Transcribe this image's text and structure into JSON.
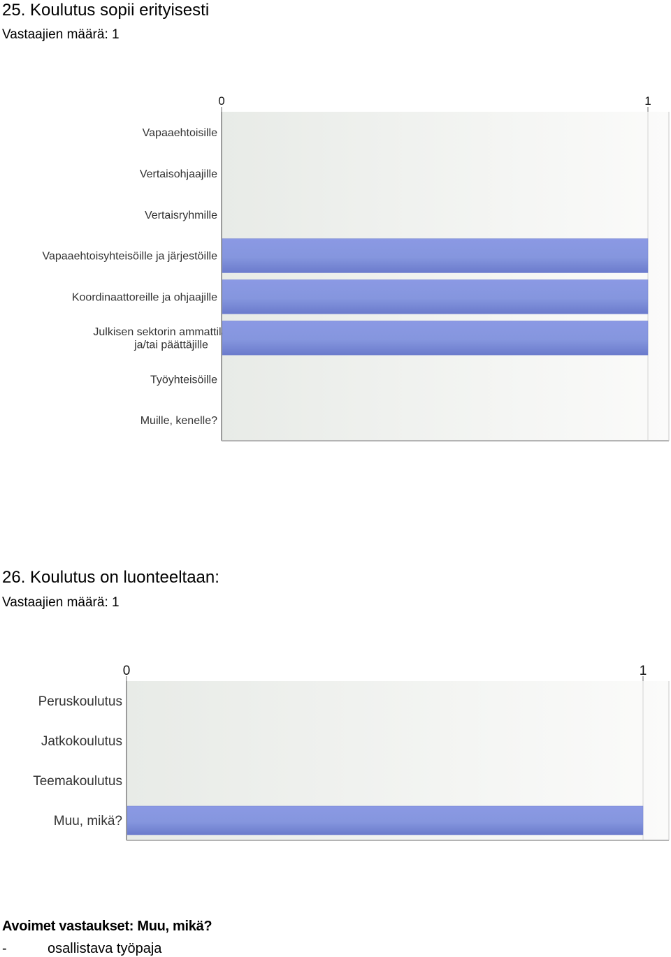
{
  "q25": {
    "title": "25. Koulutus sopii erityisesti",
    "respondents": "Vastaajien määrä: 1",
    "chart_data": {
      "type": "bar",
      "orientation": "horizontal",
      "ticks": [
        "0",
        "1"
      ],
      "xlim": [
        0,
        1
      ],
      "categories": [
        "Vapaaehtoisille",
        "Vertaisohjaajille",
        "Vertaisryhmille",
        "Vapaaehtoisyhteisöille ja järjestöille",
        "Koordinaattoreille ja ohjaajille",
        "Julkisen sektorin ammattilaisille ja/tai päättäjille",
        "Työyhteisöille",
        "Muille, kenelle?"
      ],
      "category_lines": [
        [
          "Vapaaehtoisille"
        ],
        [
          "Vertaisohjaajille"
        ],
        [
          "Vertaisryhmille"
        ],
        [
          "Vapaaehtoisyhteisöille ja järjestöille"
        ],
        [
          "Koordinaattoreille ja ohjaajille"
        ],
        [
          "Julkisen sektorin ammattilaisille",
          "ja/tai päättäjille"
        ],
        [
          "Työyhteisöille"
        ],
        [
          "Muille, kenelle?"
        ]
      ],
      "values": [
        0,
        0,
        0,
        1,
        1,
        1,
        0,
        0
      ],
      "bar_color": "#8596de"
    }
  },
  "q26": {
    "title": "26. Koulutus on luonteeltaan:",
    "respondents": "Vastaajien määrä: 1",
    "chart_data": {
      "type": "bar",
      "orientation": "horizontal",
      "ticks": [
        "0",
        "1"
      ],
      "xlim": [
        0,
        1
      ],
      "categories": [
        "Peruskoulutus",
        "Jatkokoulutus",
        "Teemakoulutus",
        "Muu, mikä?"
      ],
      "category_lines": [
        [
          "Peruskoulutus"
        ],
        [
          "Jatkokoulutus"
        ],
        [
          "Teemakoulutus"
        ],
        [
          "Muu, mikä?"
        ]
      ],
      "values": [
        0,
        0,
        0,
        1
      ],
      "bar_color": "#8596de"
    }
  },
  "open_answers": {
    "title": "Avoimet vastaukset: Muu, mikä?",
    "items": [
      {
        "bullet": "-",
        "text": "osallistava työpaja"
      }
    ]
  }
}
